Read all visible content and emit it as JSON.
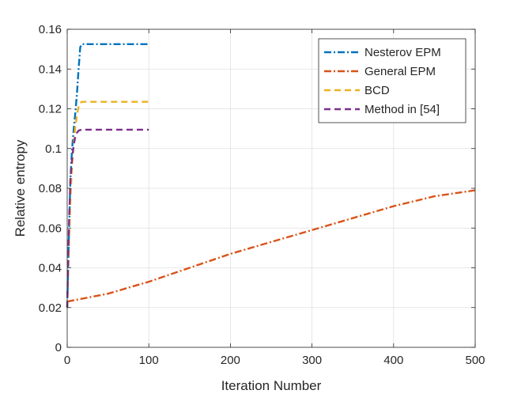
{
  "chart_data": {
    "type": "line",
    "title": "",
    "xlabel": "Iteration Number",
    "ylabel": "Relative entropy",
    "xlim": [
      0,
      500
    ],
    "ylim": [
      0,
      0.16
    ],
    "xticks": [
      0,
      100,
      200,
      300,
      400,
      500
    ],
    "yticks": [
      0,
      0.02,
      0.04,
      0.06,
      0.08,
      0.1,
      0.12,
      0.14,
      0.16
    ],
    "xtick_labels": [
      "0",
      "100",
      "200",
      "300",
      "400",
      "500"
    ],
    "ytick_labels": [
      "0",
      "0.02",
      "0.04",
      "0.06",
      "0.08",
      "0.1",
      "0.12",
      "0.14",
      "0.16"
    ],
    "grid": true,
    "legend_position": "top-right",
    "series": [
      {
        "name": "Nesterov EPM",
        "color": "#0072BD",
        "dash": "dashdot",
        "x": [
          0,
          2,
          4,
          6,
          8,
          10,
          12,
          14,
          16,
          18,
          100
        ],
        "y": [
          0.02,
          0.055,
          0.085,
          0.1,
          0.11,
          0.118,
          0.128,
          0.14,
          0.151,
          0.1525,
          0.1525
        ]
      },
      {
        "name": "General EPM",
        "color": "#D95319",
        "dash": "dashdot",
        "x": [
          0,
          50,
          100,
          150,
          200,
          250,
          300,
          350,
          400,
          450,
          500
        ],
        "y": [
          0.023,
          0.027,
          0.033,
          0.04,
          0.047,
          0.053,
          0.059,
          0.065,
          0.071,
          0.076,
          0.079
        ]
      },
      {
        "name": "BCD",
        "color": "#EDB120",
        "dash": "dashed",
        "x": [
          0,
          2,
          4,
          6,
          8,
          10,
          12,
          14,
          16,
          18,
          100
        ],
        "y": [
          0.02,
          0.05,
          0.075,
          0.092,
          0.103,
          0.111,
          0.117,
          0.121,
          0.123,
          0.1235,
          0.1235
        ]
      },
      {
        "name": "Method in [54]",
        "color": "#7E2F8E",
        "dash": "dashed",
        "x": [
          0,
          2,
          4,
          6,
          8,
          10,
          12,
          14,
          16,
          18,
          100
        ],
        "y": [
          0.02,
          0.06,
          0.085,
          0.095,
          0.102,
          0.106,
          0.108,
          0.109,
          0.1093,
          0.1095,
          0.1095
        ]
      }
    ]
  }
}
